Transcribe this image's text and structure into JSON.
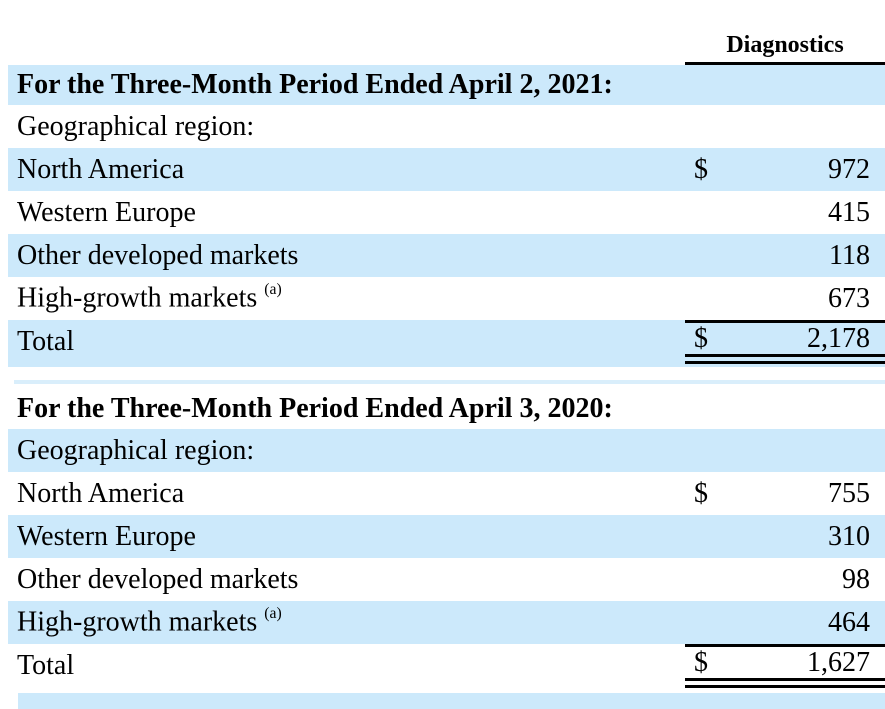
{
  "report": {
    "column_header": "Diagnostics",
    "sections": [
      {
        "title": "For the Three-Month Period Ended April 2, 2021:",
        "group_label": "Geographical region:",
        "rows": [
          {
            "label": "North America",
            "currency": "$",
            "value": "972"
          },
          {
            "label": "Western Europe",
            "currency": "",
            "value": "415"
          },
          {
            "label": "Other developed markets",
            "currency": "",
            "value": "118"
          },
          {
            "label": "High-growth markets",
            "footnote": "(a)",
            "currency": "",
            "value": "673"
          }
        ],
        "total": {
          "label": "Total",
          "currency": "$",
          "value": "2,178"
        }
      },
      {
        "title": "For the Three-Month Period Ended April 3, 2020:",
        "group_label": "Geographical region:",
        "rows": [
          {
            "label": "North America",
            "currency": "$",
            "value": "755"
          },
          {
            "label": "Western Europe",
            "currency": "",
            "value": "310"
          },
          {
            "label": "Other developed markets",
            "currency": "",
            "value": "98"
          },
          {
            "label": "High-growth markets",
            "footnote": "(a)",
            "currency": "",
            "value": "464"
          }
        ],
        "total": {
          "label": "Total",
          "currency": "$",
          "value": "1,627"
        }
      }
    ],
    "colors": {
      "stripe_blue": "#cce9fb",
      "separator_blue": "#d9eefb",
      "rule_black": "#000000"
    }
  }
}
